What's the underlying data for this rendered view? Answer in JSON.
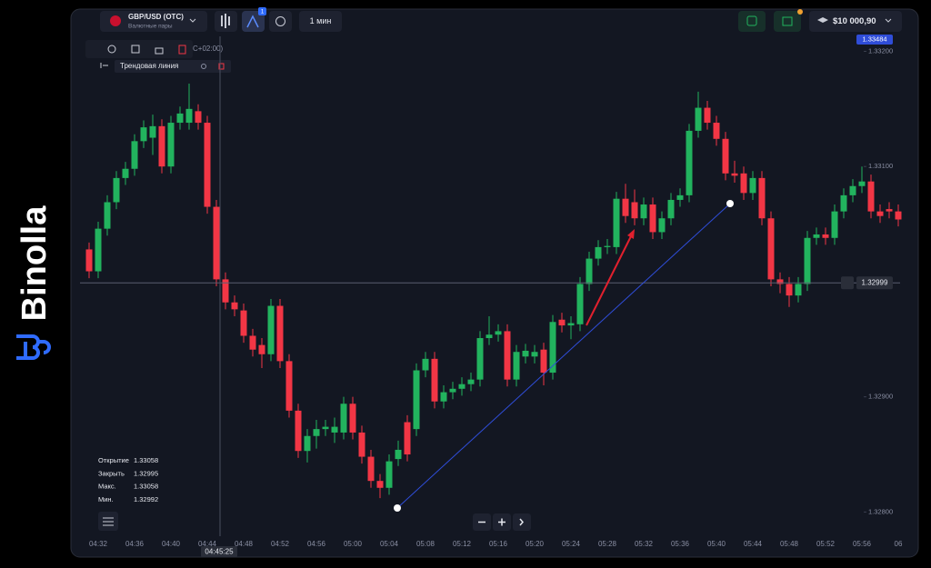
{
  "brand": "Binolla",
  "header": {
    "pair": "GBP/USD (OTC)",
    "pair_group": "Валютные пары",
    "badge": "1",
    "timeframe": "1 мин",
    "balance": "$10 000,90"
  },
  "toolbar": {
    "timezone": "C+02:00)",
    "drawing": "Трендовая линия"
  },
  "top_price_label": "1.33484",
  "crosshair_time": "04:45:25",
  "ohlc_panel": [
    [
      "Открытие",
      "1.33058"
    ],
    [
      "Закрыть",
      "1.32995"
    ],
    [
      "Макс.",
      "1.33058"
    ],
    [
      "Мин.",
      "1.32992"
    ]
  ],
  "chart_data": {
    "type": "candlestick",
    "categories": [
      null,
      "04:32",
      null,
      null,
      null,
      "04:36",
      null,
      null,
      null,
      "04:40",
      null,
      null,
      null,
      "04:44",
      null,
      null,
      null,
      "04:48",
      null,
      null,
      null,
      "04:52",
      null,
      null,
      null,
      "04:56",
      null,
      null,
      null,
      "05:00",
      null,
      null,
      null,
      "05:04",
      null,
      null,
      null,
      "05:08",
      null,
      null,
      null,
      "05:12",
      null,
      null,
      null,
      "05:16",
      null,
      null,
      null,
      "05:20",
      null,
      null,
      null,
      "05:24",
      null,
      null,
      null,
      "05:28",
      null,
      null,
      null,
      "05:32",
      null,
      null,
      null,
      "05:36",
      null,
      null,
      null,
      "05:40",
      null,
      null,
      null,
      "05:44",
      null,
      null,
      null,
      "05:48",
      null,
      null,
      null,
      "05:52",
      null,
      null,
      null,
      "05:56",
      null,
      null,
      null,
      "06"
    ],
    "candles": [
      [
        1.33028,
        1.33034,
        1.33003,
        1.33009
      ],
      [
        1.33009,
        1.33052,
        1.33003,
        1.33046
      ],
      [
        1.33046,
        1.33075,
        1.3304,
        1.33069
      ],
      [
        1.33069,
        1.33096,
        1.33063,
        1.3309
      ],
      [
        1.3309,
        1.33104,
        1.33084,
        1.33098
      ],
      [
        1.33098,
        1.33128,
        1.33092,
        1.33122
      ],
      [
        1.33122,
        1.3314,
        1.33116,
        1.33134
      ],
      [
        1.33125,
        1.33145,
        1.3311,
        1.33135
      ],
      [
        1.33135,
        1.33141,
        1.33094,
        1.331
      ],
      [
        1.331,
        1.33144,
        1.33094,
        1.33138
      ],
      [
        1.33138,
        1.33152,
        1.33132,
        1.33146
      ],
      [
        1.33138,
        1.33172,
        1.33132,
        1.3315
      ],
      [
        1.33148,
        1.33154,
        1.33132,
        1.33138
      ],
      [
        1.33138,
        1.33144,
        1.33059,
        1.33065
      ],
      [
        1.33065,
        1.33071,
        1.32996,
        1.33002
      ],
      [
        1.33002,
        1.33008,
        1.32976,
        1.32982
      ],
      [
        1.32982,
        1.32988,
        1.3297,
        1.32976
      ],
      [
        1.32975,
        1.32981,
        1.32947,
        1.32953
      ],
      [
        1.32953,
        1.32959,
        1.32935,
        1.32941
      ],
      [
        1.32945,
        1.32951,
        1.32925,
        1.32937
      ],
      [
        1.32937,
        1.32985,
        1.32931,
        1.32979
      ],
      [
        1.32979,
        1.32985,
        1.32925,
        1.32931
      ],
      [
        1.32931,
        1.32937,
        1.32882,
        1.32888
      ],
      [
        1.32888,
        1.32894,
        1.32847,
        1.32853
      ],
      [
        1.32853,
        1.32872,
        1.32843,
        1.32866
      ],
      [
        1.32866,
        1.3288,
        1.32855,
        1.32872
      ],
      [
        1.32872,
        1.3288,
        1.32866,
        1.32874
      ],
      [
        1.32869,
        1.32882,
        1.3286,
        1.32874
      ],
      [
        1.32869,
        1.329,
        1.32863,
        1.32894
      ],
      [
        1.32894,
        1.329,
        1.32863,
        1.32869
      ],
      [
        1.32869,
        1.32875,
        1.32842,
        1.32848
      ],
      [
        1.32848,
        1.32854,
        1.32821,
        1.32827
      ],
      [
        1.32827,
        1.32833,
        1.32812,
        1.32821
      ],
      [
        1.32821,
        1.3285,
        1.32815,
        1.32844
      ],
      [
        1.32846,
        1.32862,
        1.3284,
        1.32854
      ],
      [
        1.32878,
        1.32884,
        1.32844,
        1.3285
      ],
      [
        1.32872,
        1.32929,
        1.32866,
        1.32923
      ],
      [
        1.32923,
        1.32939,
        1.32917,
        1.32933
      ],
      [
        1.32933,
        1.32939,
        1.3289,
        1.32896
      ],
      [
        1.32896,
        1.3291,
        1.3289,
        1.32904
      ],
      [
        1.32904,
        1.32913,
        1.32898,
        1.32907
      ],
      [
        1.32907,
        1.32917,
        1.32901,
        1.32911
      ],
      [
        1.32911,
        1.32921,
        1.32905,
        1.32915
      ],
      [
        1.32915,
        1.32957,
        1.32909,
        1.32951
      ],
      [
        1.32951,
        1.3297,
        1.32945,
        1.32954
      ],
      [
        1.32954,
        1.32963,
        1.32948,
        1.32957
      ],
      [
        1.32957,
        1.32963,
        1.32909,
        1.32915
      ],
      [
        1.32915,
        1.32945,
        1.32909,
        1.32939
      ],
      [
        1.32935,
        1.32946,
        1.32929,
        1.3294
      ],
      [
        1.32935,
        1.32945,
        1.32929,
        1.32939
      ],
      [
        1.32941,
        1.32947,
        1.3291,
        1.32921
      ],
      [
        1.32921,
        1.32971,
        1.32915,
        1.32965
      ],
      [
        1.32967,
        1.32973,
        1.32956,
        1.32962
      ],
      [
        1.32962,
        1.3297,
        1.3295,
        1.32964
      ],
      [
        1.32963,
        1.33004,
        1.32957,
        1.32998
      ],
      [
        1.32998,
        1.33026,
        1.32992,
        1.3302
      ],
      [
        1.3302,
        1.33036,
        1.33014,
        1.3303
      ],
      [
        1.3303,
        1.33037,
        1.33024,
        1.33031
      ],
      [
        1.3303,
        1.33078,
        1.33024,
        1.33072
      ],
      [
        1.33072,
        1.33085,
        1.33051,
        1.33057
      ],
      [
        1.33069,
        1.3308,
        1.33049,
        1.33055
      ],
      [
        1.33055,
        1.33073,
        1.33049,
        1.33067
      ],
      [
        1.33067,
        1.33073,
        1.33037,
        1.33043
      ],
      [
        1.33043,
        1.33061,
        1.33037,
        1.33055
      ],
      [
        1.33055,
        1.33077,
        1.33049,
        1.33071
      ],
      [
        1.33071,
        1.33081,
        1.33065,
        1.33075
      ],
      [
        1.33075,
        1.33137,
        1.33069,
        1.33131
      ],
      [
        1.33131,
        1.33165,
        1.33125,
        1.33151
      ],
      [
        1.33151,
        1.33157,
        1.33132,
        1.33138
      ],
      [
        1.33138,
        1.33144,
        1.33118,
        1.33124
      ],
      [
        1.33124,
        1.3313,
        1.33088,
        1.33094
      ],
      [
        1.33094,
        1.33105,
        1.33086,
        1.33092
      ],
      [
        1.33094,
        1.331,
        1.33071,
        1.33077
      ],
      [
        1.33077,
        1.33096,
        1.33071,
        1.3309
      ],
      [
        1.3309,
        1.33096,
        1.33049,
        1.33055
      ],
      [
        1.33055,
        1.33061,
        1.32996,
        1.33002
      ],
      [
        1.33002,
        1.33008,
        1.3299,
        1.32998
      ],
      [
        1.32998,
        1.33004,
        1.32978,
        1.32988
      ],
      [
        1.32988,
        1.33004,
        1.32982,
        1.32998
      ],
      [
        1.32998,
        1.33044,
        1.32992,
        1.33038
      ],
      [
        1.33038,
        1.33047,
        1.33032,
        1.33041
      ],
      [
        1.33041,
        1.33047,
        1.33032,
        1.33038
      ],
      [
        1.33038,
        1.33067,
        1.33032,
        1.33061
      ],
      [
        1.33061,
        1.33081,
        1.33055,
        1.33075
      ],
      [
        1.33075,
        1.33089,
        1.33069,
        1.33083
      ],
      [
        1.33083,
        1.331,
        1.33077,
        1.33087
      ],
      [
        1.33087,
        1.33093,
        1.33055,
        1.33061
      ],
      [
        1.33061,
        1.33067,
        1.33051,
        1.33057
      ],
      [
        1.33063,
        1.33069,
        1.33055,
        1.33061
      ],
      [
        1.33061,
        1.33067,
        1.33048,
        1.33054
      ]
    ],
    "up_color": "#22b35e",
    "down_color": "#f23645",
    "ylim": [
      1.32779,
      1.33213
    ],
    "yticks": [
      {
        "value": 1.332,
        "label": "1.33200"
      },
      {
        "value": 1.331,
        "label": "1.33100"
      },
      {
        "value": 1.329,
        "label": "1.32900"
      },
      {
        "value": 1.328,
        "label": "1.32800"
      }
    ],
    "current_price": {
      "value": 1.32999,
      "label": "1.32999"
    },
    "grid": false
  }
}
